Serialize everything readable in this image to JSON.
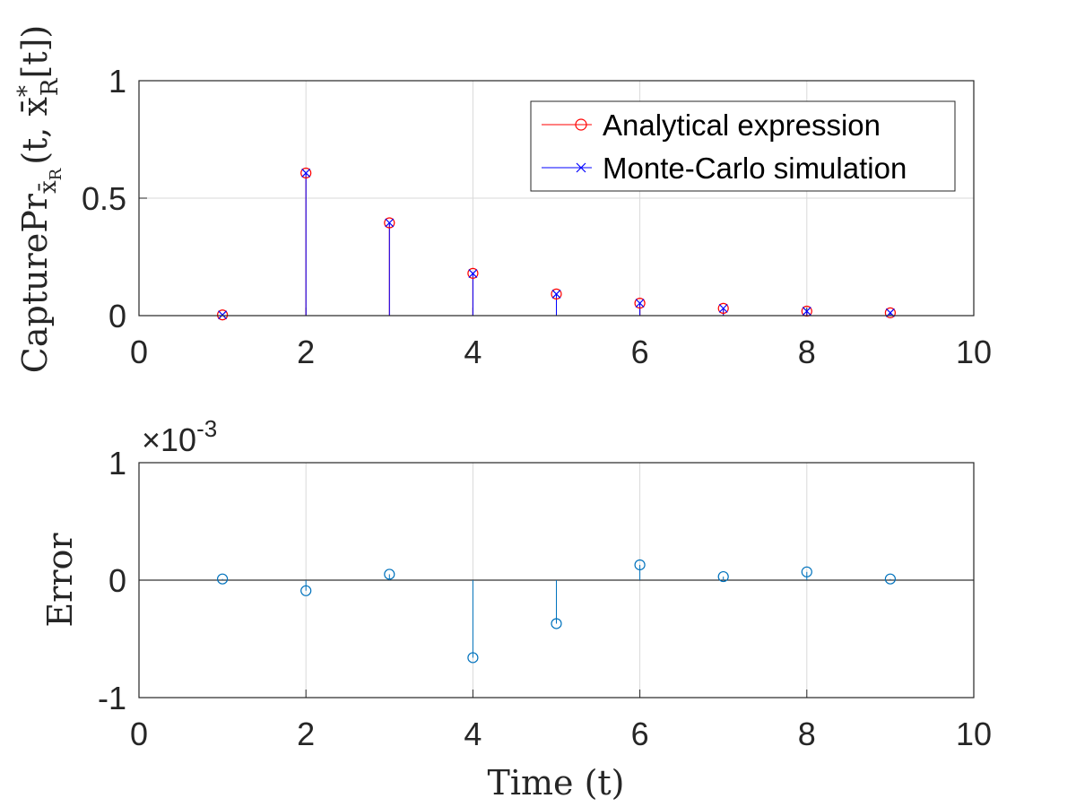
{
  "colors": {
    "analytical": "#ff0000",
    "montecarlo": "#0000ff",
    "error": "#0072bd",
    "grid": "#d9d9d9",
    "axes": "#262626"
  },
  "chart_data": [
    {
      "type": "stem",
      "xlabel": "",
      "ylabel": "CapturePr",
      "ylabel_sub": "x̄",
      "ylabel_subsub": "R",
      "ylabel_args": "(t, x̄",
      "ylabel_sup": "*",
      "ylabel_sub2": "R",
      "ylabel_tail": "[t])",
      "xlim": [
        0,
        10
      ],
      "ylim": [
        0,
        1
      ],
      "xticks": [
        "0",
        "2",
        "4",
        "6",
        "8",
        "10"
      ],
      "yticks": [
        "0",
        "0.5",
        "1"
      ],
      "grid": true,
      "legend_position": "top-right",
      "x": [
        1,
        2,
        3,
        4,
        5,
        6,
        7,
        8,
        9
      ],
      "series": [
        {
          "name": "Analytical expression",
          "marker": "circle",
          "values": [
            0.003,
            0.607,
            0.395,
            0.18,
            0.092,
            0.053,
            0.031,
            0.019,
            0.012
          ]
        },
        {
          "name": "Monte-Carlo simulation",
          "marker": "x",
          "values": [
            0.003,
            0.607,
            0.395,
            0.179,
            0.092,
            0.053,
            0.031,
            0.019,
            0.012
          ]
        }
      ]
    },
    {
      "type": "stem",
      "xlabel": "Time (t)",
      "ylabel": "Error",
      "exponent_label": "×10",
      "exponent_power": "-3",
      "xlim": [
        0,
        10
      ],
      "ylim": [
        -1,
        1
      ],
      "xticks": [
        "0",
        "2",
        "4",
        "6",
        "8",
        "10"
      ],
      "yticks": [
        "-1",
        "0",
        "1"
      ],
      "grid": true,
      "x": [
        1,
        2,
        3,
        4,
        5,
        6,
        7,
        8,
        9
      ],
      "series": [
        {
          "marker": "circle",
          "values": [
            1e-05,
            -9e-05,
            5e-05,
            -0.00066,
            -0.00037,
            0.00013,
            3e-05,
            7e-05,
            1e-05
          ]
        }
      ]
    }
  ]
}
